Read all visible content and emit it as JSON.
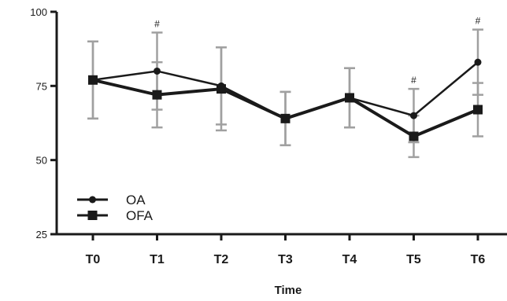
{
  "chart_data": {
    "type": "line",
    "title": "",
    "xlabel": "Time",
    "ylabel": "",
    "categories": [
      "T0",
      "T1",
      "T2",
      "T3",
      "T4",
      "T5",
      "T6"
    ],
    "yticks": [
      "25",
      "50",
      "75",
      "100"
    ],
    "ylim": [
      25,
      100
    ],
    "grid": false,
    "legend": "bottom-left",
    "series": [
      {
        "name": "OA",
        "marker": "circle",
        "values": [
          77,
          80,
          75,
          64,
          71,
          65,
          83
        ],
        "error": [
          13,
          13,
          13,
          9,
          10,
          9,
          11
        ],
        "significance": [
          "",
          "#",
          "",
          "",
          "",
          "#",
          "#"
        ]
      },
      {
        "name": "OFA",
        "marker": "square",
        "values": [
          77,
          72,
          74,
          64,
          71,
          58,
          67
        ],
        "error": [
          13,
          11,
          14,
          9,
          10,
          7,
          9
        ],
        "significance": [
          "",
          "",
          "",
          "",
          "",
          "",
          ""
        ]
      }
    ],
    "colors": {
      "line": "#1a1a1a",
      "error_bar": "#a0a0a0"
    }
  }
}
